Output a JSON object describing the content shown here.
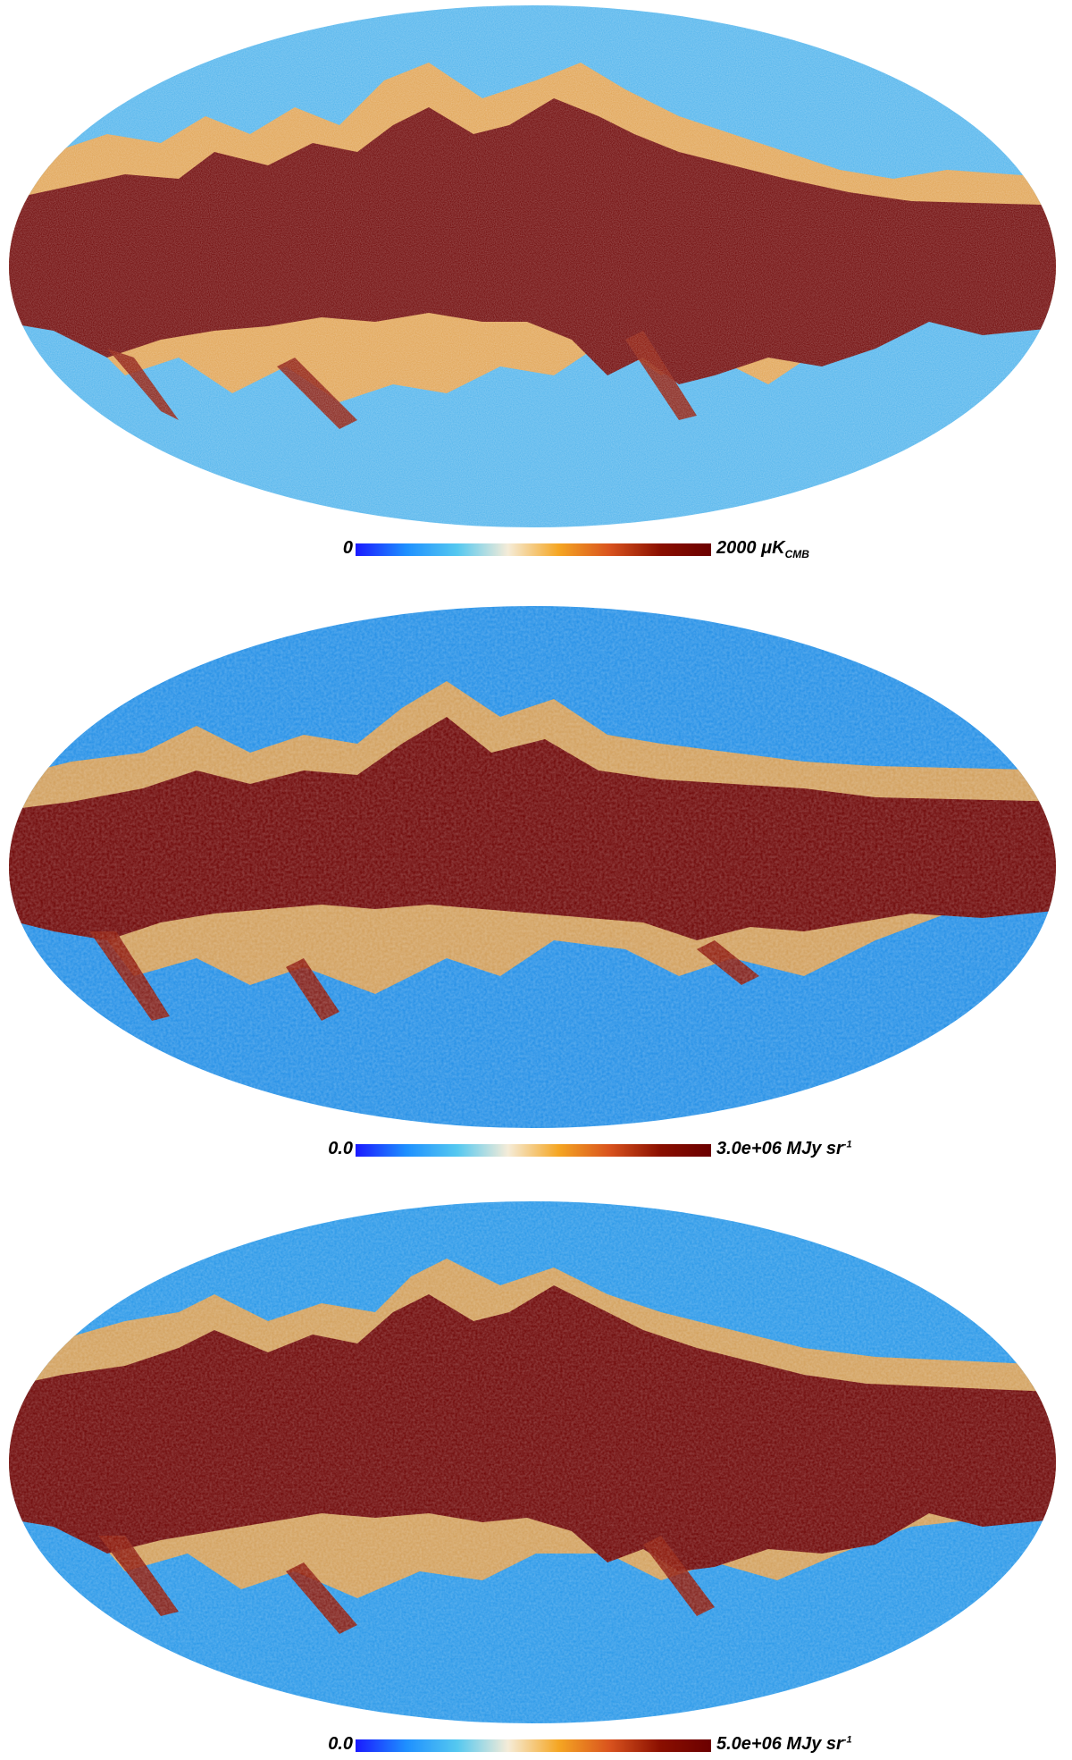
{
  "panels": [
    {
      "id": "map-1",
      "colorbar": {
        "min": "0",
        "max": "2000",
        "unit_main": "μK",
        "unit_sub": "CMB",
        "unit_sup": ""
      }
    },
    {
      "id": "map-2",
      "colorbar": {
        "min": "0.0",
        "max": "3.0e+06",
        "unit_main": "MJy sr",
        "unit_sub": "",
        "unit_sup": "-1"
      }
    },
    {
      "id": "map-3",
      "colorbar": {
        "min": "0.0",
        "max": "5.0e+06",
        "unit_main": "MJy sr",
        "unit_sub": "",
        "unit_sup": "-1"
      }
    }
  ],
  "colormap": [
    "#1a1aff",
    "#1e90ff",
    "#55c8f0",
    "#f5ecd8",
    "#f5a623",
    "#d9531e",
    "#8a0f00",
    "#6b0000"
  ],
  "colors": {
    "galactic_plane": "#6b0000",
    "sky_blue": "#3aa5e6",
    "deep_blue": "#1f7fe0"
  }
}
